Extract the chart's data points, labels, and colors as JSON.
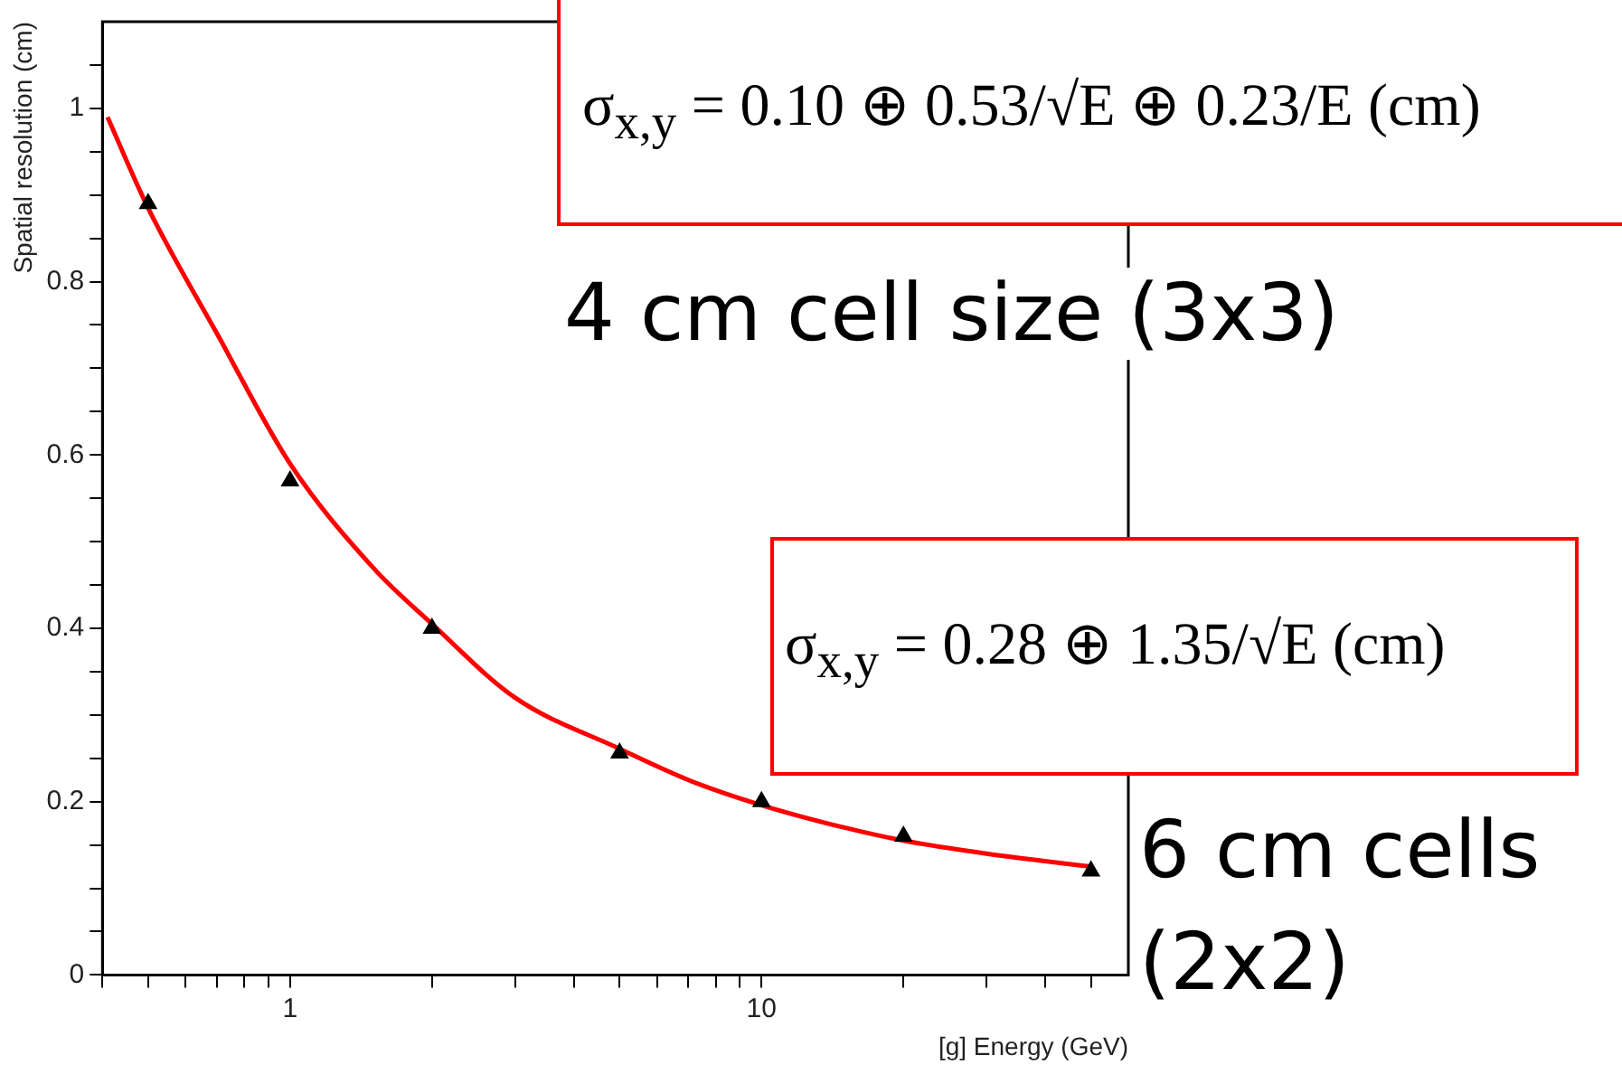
{
  "chart_data": {
    "type": "scatter",
    "xlabel": "[g] Energy (GeV)",
    "ylabel": "Spatial resolution (cm)",
    "log": "x",
    "xlim": [
      0.4,
      60
    ],
    "xticks": [
      {
        "value": 0.4,
        "label": null
      },
      {
        "value": 0.5,
        "label": null
      },
      {
        "value": 0.6,
        "label": null
      },
      {
        "value": 0.7,
        "label": null
      },
      {
        "value": 0.8,
        "label": null
      },
      {
        "value": 0.9,
        "label": null
      },
      1,
      {
        "value": 2,
        "label": null
      },
      {
        "value": 3,
        "label": null
      },
      {
        "value": 4,
        "label": null
      },
      {
        "value": 5,
        "label": null
      },
      {
        "value": 6,
        "label": null
      },
      {
        "value": 7,
        "label": null
      },
      {
        "value": 8,
        "label": null
      },
      {
        "value": 9,
        "label": null
      },
      10,
      {
        "value": 20,
        "label": null
      },
      {
        "value": 30,
        "label": null
      },
      {
        "value": 40,
        "label": null
      },
      {
        "value": 50,
        "label": null
      }
    ],
    "ylim": [
      0,
      1.1
    ],
    "yticks": [
      0,
      {
        "value": 0.05,
        "label": null
      },
      {
        "value": 0.1,
        "label": null
      },
      {
        "value": 0.15,
        "label": null
      },
      0.2,
      {
        "value": 0.25,
        "label": null
      },
      {
        "value": 0.3,
        "label": null
      },
      {
        "value": 0.35,
        "label": null
      },
      0.4,
      {
        "value": 0.45,
        "label": null
      },
      {
        "value": 0.5,
        "label": null
      },
      {
        "value": 0.55,
        "label": null
      },
      0.6,
      {
        "value": 0.65,
        "label": null
      },
      {
        "value": 0.7,
        "label": null
      },
      {
        "value": 0.75,
        "label": null
      },
      0.8,
      {
        "value": 0.85,
        "label": null
      },
      {
        "value": 0.9,
        "label": null
      },
      {
        "value": 0.95,
        "label": null
      },
      1,
      {
        "value": 1.05,
        "label": null
      }
    ],
    "grid": false,
    "legend": false,
    "series": [
      {
        "type": "scatter",
        "color": "#000000",
        "marker": "triangle",
        "x": [
          0.5,
          1,
          2,
          5,
          10,
          20,
          50
        ],
        "values": [
          0.89,
          0.57,
          0.4,
          0.256,
          0.2,
          0.16,
          0.12
        ]
      },
      {
        "type": "line",
        "color": "#ff0000",
        "marker": "none",
        "line_style": "solid",
        "x": [
          0.41,
          0.5,
          0.7,
          1,
          1.5,
          2,
          3,
          5,
          7,
          10,
          15,
          20,
          30,
          50
        ],
        "values": [
          0.99,
          0.885,
          0.74,
          0.59,
          0.47,
          0.405,
          0.32,
          0.261,
          0.225,
          0.196,
          0.17,
          0.155,
          0.14,
          0.125
        ]
      }
    ],
    "annotations": [
      "σ$_{x,y}$ = 0.10 ⊕ 0.53/√E ⊕ 0.23/E   (cm)",
      "4 cm cell size (3x3)",
      "σ$_{x,y}$ = 0.28 ⊕ 1.35/√E   (cm)",
      "6 cm cells (2x2)"
    ]
  }
}
